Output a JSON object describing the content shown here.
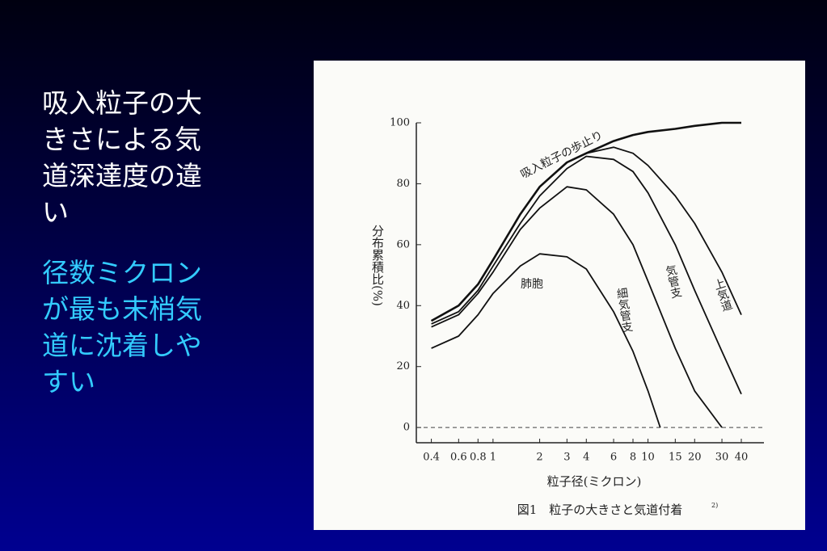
{
  "slide": {
    "heading": "吸入粒子の大きさによる気道深達度の違い",
    "point": "径数ミクロンが最も末梢気道に沈着しやすい"
  },
  "chart_data": {
    "type": "line",
    "caption": "図1　粒子の大きさと気道付着",
    "caption_ref": "2)",
    "x_label": "粒子径(ミクロン)",
    "y_label": "分布累積比(%)",
    "x_scale": "log",
    "xlim": [
      0.32,
      56
    ],
    "ylim": [
      -5,
      100
    ],
    "xticks": [
      0.4,
      0.6,
      {
        "value": 0.8,
        "label": "0.8"
      },
      1,
      2,
      3,
      4,
      6,
      8,
      10,
      15,
      20,
      30,
      40
    ],
    "yticks": [
      0,
      20,
      40,
      60,
      80,
      100
    ],
    "series": [
      {
        "name": "吸入粒子の歩止り",
        "color": "#111111",
        "width": 2.6,
        "x": [
          0.4,
          0.6,
          0.8,
          1,
          1.5,
          2,
          3,
          4,
          6,
          8,
          10,
          15,
          20,
          30,
          40
        ],
        "values": [
          35,
          40,
          47,
          55,
          70,
          79,
          87,
          90,
          94,
          96,
          97,
          98,
          99,
          100,
          100
        ]
      },
      {
        "name": "上気道",
        "color": "#111111",
        "width": 1.8,
        "x": [
          0.4,
          0.6,
          0.8,
          1,
          1.5,
          2,
          3,
          4,
          6,
          8,
          10,
          15,
          20,
          30,
          40
        ],
        "values": [
          35,
          40,
          47,
          55,
          70,
          79,
          87,
          90,
          92,
          90,
          86,
          76,
          67,
          51,
          37
        ]
      },
      {
        "name": "気管支",
        "color": "#111111",
        "width": 1.8,
        "x": [
          0.4,
          0.6,
          0.8,
          1,
          1.5,
          2,
          3,
          4,
          6,
          8,
          10,
          15,
          20,
          30,
          40
        ],
        "values": [
          34,
          38,
          45,
          53,
          67,
          76,
          85,
          89,
          88,
          84,
          77,
          60,
          45,
          25,
          11
        ]
      },
      {
        "name": "細気管支",
        "color": "#111111",
        "width": 1.8,
        "x": [
          0.4,
          0.6,
          0.8,
          1,
          1.5,
          2,
          3,
          4,
          6,
          8,
          10,
          15,
          20,
          30
        ],
        "values": [
          33,
          37,
          44,
          51,
          65,
          72,
          79,
          78,
          70,
          60,
          48,
          26,
          12,
          0
        ]
      },
      {
        "name": "肺胞",
        "color": "#111111",
        "width": 1.8,
        "x": [
          0.4,
          0.6,
          0.8,
          1,
          1.5,
          2,
          3,
          4,
          6,
          8,
          10,
          12
        ],
        "values": [
          26,
          30,
          37,
          44,
          53,
          57,
          56,
          52,
          38,
          25,
          12,
          0
        ]
      }
    ]
  }
}
